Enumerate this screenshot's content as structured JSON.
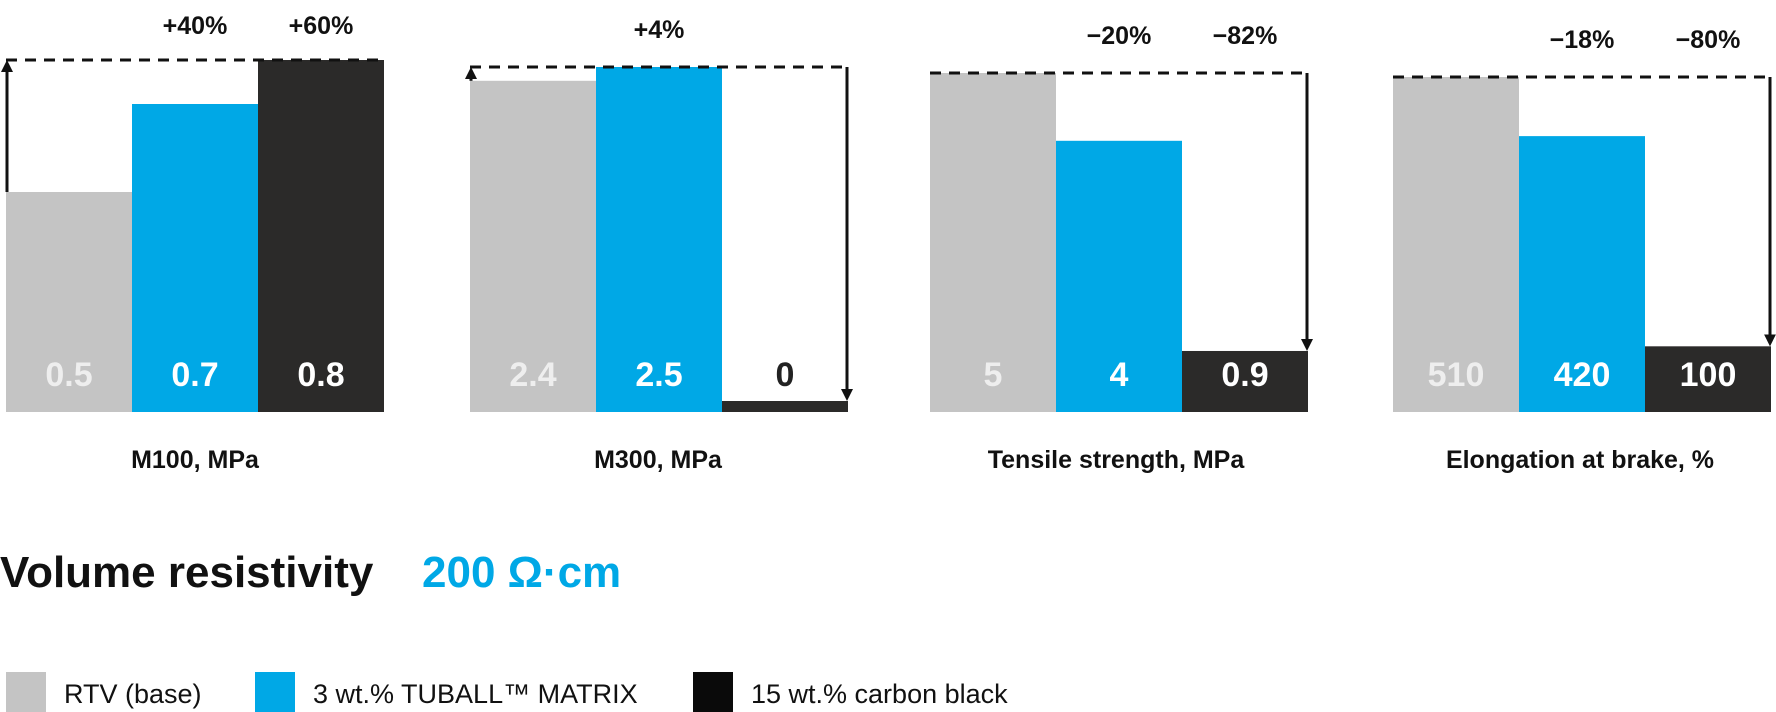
{
  "colors": {
    "rtv": "#c4c4c4",
    "tuball": "#00a8e6",
    "carbon": "#2b2a29",
    "text": "#111111",
    "value_text_light": "#eeeeee",
    "value_text_white": "#ffffff",
    "value_text_dark": "#222222"
  },
  "chart_data": [
    {
      "type": "bar",
      "xlabel": "M100, MPa",
      "categories": [
        "RTV (base)",
        "3 wt.% TUBALL™ MATRIX",
        "15 wt.% carbon black"
      ],
      "values": [
        0.5,
        0.7,
        0.8
      ],
      "value_labels": [
        "0.5",
        "0.7",
        "0.8"
      ],
      "change_labels": [
        null,
        "+40%",
        "+60%"
      ],
      "arrow": "up"
    },
    {
      "type": "bar",
      "xlabel": "M300, MPa",
      "categories": [
        "RTV (base)",
        "3 wt.% TUBALL™ MATRIX",
        "15 wt.% carbon black"
      ],
      "values": [
        2.4,
        2.5,
        0
      ],
      "value_labels": [
        "2.4",
        "2.5",
        "0"
      ],
      "change_labels": [
        null,
        "+4%",
        null
      ],
      "arrow": "both"
    },
    {
      "type": "bar",
      "xlabel": "Tensile strength, MPa",
      "categories": [
        "RTV (base)",
        "3 wt.% TUBALL™ MATRIX",
        "15 wt.% carbon black"
      ],
      "values": [
        5,
        4,
        0.9
      ],
      "value_labels": [
        "5",
        "4",
        "0.9"
      ],
      "change_labels": [
        null,
        "−20%",
        "−82%"
      ],
      "arrow": "down"
    },
    {
      "type": "bar",
      "xlabel": "Elongation at brake, %",
      "categories": [
        "RTV (base)",
        "3 wt.% TUBALL™ MATRIX",
        "15 wt.% carbon black"
      ],
      "values": [
        510,
        420,
        100
      ],
      "value_labels": [
        "510",
        "420",
        "100"
      ],
      "change_labels": [
        null,
        "−18%",
        "−80%"
      ],
      "arrow": "down"
    }
  ],
  "resistivity": {
    "label": "Volume resistivity",
    "value": "200 Ω·cm"
  },
  "legend": [
    {
      "label": "RTV (base)",
      "color": "#c4c4c4"
    },
    {
      "label": "3 wt.% TUBALL™ MATRIX",
      "color": "#00a8e6"
    },
    {
      "label": "15 wt.% carbon black",
      "color": "#0a0a0a"
    }
  ]
}
